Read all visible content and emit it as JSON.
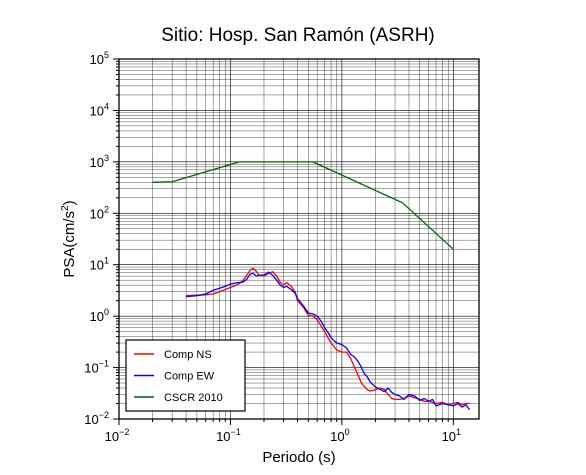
{
  "chart_data": {
    "type": "line",
    "title": "Sitio: Hosp. San Ramón (ASRH)",
    "xlabel": "Periodo (s)",
    "ylabel": {
      "text": "PSA(cm/s",
      "sup": "2",
      "close": ")"
    },
    "x_scale": "log",
    "y_scale": "log",
    "xlim": [
      0.01,
      17
    ],
    "ylim": [
      0.01,
      100000
    ],
    "grid": true,
    "legend_position": "bottom-left",
    "x_ticks": [
      {
        "base": "10",
        "exp": "−2",
        "value": 0.01
      },
      {
        "base": "10",
        "exp": "−1",
        "value": 0.1
      },
      {
        "base": "10",
        "exp": "0",
        "value": 1
      },
      {
        "base": "10",
        "exp": "1",
        "value": 10
      }
    ],
    "y_ticks": [
      {
        "base": "10",
        "exp": "−2",
        "value": 0.01
      },
      {
        "base": "10",
        "exp": "−1",
        "value": 0.1
      },
      {
        "base": "10",
        "exp": "0",
        "value": 1
      },
      {
        "base": "10",
        "exp": "1",
        "value": 10
      },
      {
        "base": "10",
        "exp": "2",
        "value": 100
      },
      {
        "base": "10",
        "exp": "3",
        "value": 1000
      },
      {
        "base": "10",
        "exp": "4",
        "value": 10000
      },
      {
        "base": "10",
        "exp": "5",
        "value": 100000
      }
    ],
    "series": [
      {
        "name": "Comp NS",
        "color": "#ff0000",
        "x": [
          0.04,
          0.05,
          0.06,
          0.07,
          0.08,
          0.09,
          0.1,
          0.11,
          0.12,
          0.13,
          0.14,
          0.15,
          0.16,
          0.17,
          0.18,
          0.2,
          0.22,
          0.24,
          0.26,
          0.28,
          0.3,
          0.32,
          0.35,
          0.38,
          0.4,
          0.45,
          0.5,
          0.55,
          0.6,
          0.65,
          0.7,
          0.75,
          0.8,
          0.9,
          1.0,
          1.1,
          1.2,
          1.3,
          1.4,
          1.5,
          1.6,
          1.7,
          1.8,
          2.0,
          2.2,
          2.4,
          2.6,
          2.8,
          3.0,
          3.3,
          3.6,
          4.0,
          4.5,
          5.0,
          5.5,
          6.0,
          6.5,
          7.0,
          8.0,
          9.0,
          10.0,
          11.0,
          12.0,
          13.0,
          14.0
        ],
        "y": [
          2.5,
          2.55,
          2.6,
          2.7,
          3.0,
          3.3,
          3.6,
          3.9,
          4.3,
          5.0,
          6.2,
          7.8,
          8.5,
          7.5,
          6.3,
          6.0,
          6.8,
          7.3,
          6.0,
          4.5,
          4.0,
          4.5,
          3.8,
          3.0,
          2.0,
          1.5,
          1.05,
          1.0,
          0.85,
          0.65,
          0.5,
          0.38,
          0.3,
          0.22,
          0.2,
          0.2,
          0.15,
          0.1,
          0.07,
          0.05,
          0.042,
          0.037,
          0.035,
          0.037,
          0.04,
          0.038,
          0.03,
          0.025,
          0.024,
          0.024,
          0.025,
          0.028,
          0.026,
          0.024,
          0.022,
          0.022,
          0.021,
          0.02,
          0.021,
          0.019,
          0.02,
          0.021,
          0.019,
          0.02,
          0.02
        ]
      },
      {
        "name": "Comp EW",
        "color": "#0000ff",
        "x": [
          0.04,
          0.05,
          0.06,
          0.07,
          0.08,
          0.09,
          0.1,
          0.11,
          0.12,
          0.13,
          0.14,
          0.15,
          0.16,
          0.17,
          0.18,
          0.2,
          0.22,
          0.24,
          0.26,
          0.28,
          0.3,
          0.32,
          0.35,
          0.38,
          0.4,
          0.45,
          0.5,
          0.55,
          0.6,
          0.65,
          0.7,
          0.75,
          0.8,
          0.9,
          1.0,
          1.1,
          1.2,
          1.3,
          1.4,
          1.5,
          1.6,
          1.7,
          1.8,
          2.0,
          2.2,
          2.4,
          2.6,
          2.8,
          3.0,
          3.3,
          3.6,
          4.0,
          4.5,
          5.0,
          5.5,
          6.0,
          6.5,
          7.0,
          8.0,
          9.0,
          10.0,
          11.0,
          12.0,
          13.0,
          14.0
        ],
        "y": [
          2.4,
          2.5,
          2.7,
          3.2,
          3.5,
          3.8,
          4.2,
          4.4,
          4.5,
          4.6,
          5.2,
          6.5,
          6.8,
          6.0,
          6.2,
          6.3,
          7.2,
          6.2,
          5.0,
          4.0,
          3.6,
          3.8,
          3.3,
          2.8,
          2.2,
          1.6,
          1.15,
          1.1,
          1.0,
          0.8,
          0.6,
          0.48,
          0.38,
          0.3,
          0.28,
          0.24,
          0.18,
          0.16,
          0.13,
          0.1,
          0.075,
          0.065,
          0.052,
          0.042,
          0.038,
          0.034,
          0.04,
          0.033,
          0.03,
          0.028,
          0.024,
          0.03,
          0.028,
          0.023,
          0.025,
          0.022,
          0.024,
          0.018,
          0.02,
          0.019,
          0.018,
          0.02,
          0.017,
          0.019,
          0.015
        ]
      },
      {
        "name": "CSCR 2010",
        "color": "#006400",
        "x": [
          0.02,
          0.03,
          0.12,
          0.55,
          3.5,
          10.0
        ],
        "y": [
          400,
          410,
          1000,
          1000,
          160,
          20
        ]
      }
    ]
  }
}
